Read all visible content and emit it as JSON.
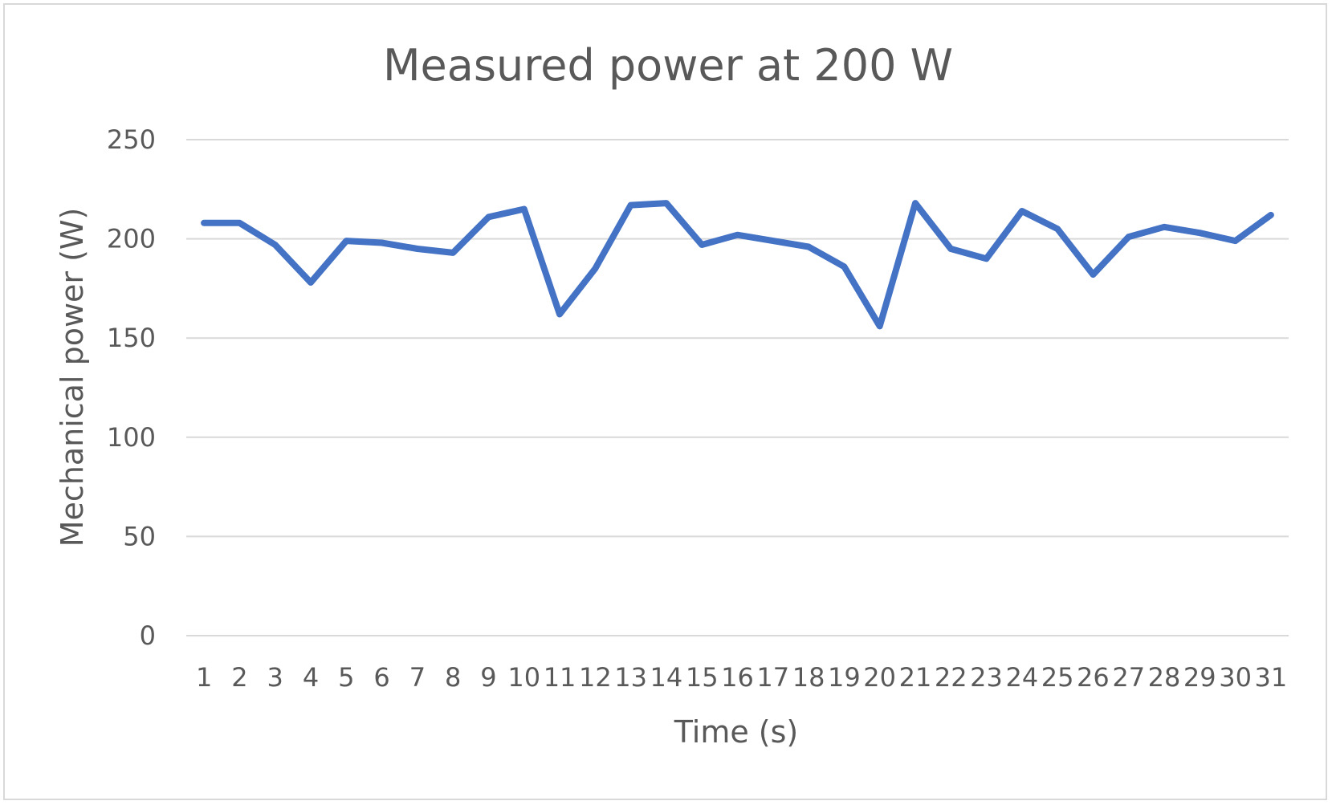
{
  "chart_data": {
    "type": "line",
    "title": "Measured power at 200 W",
    "xlabel": "Time (s)",
    "ylabel": "Mechanical power (W)",
    "ylim": [
      0,
      250
    ],
    "yticks": [
      0,
      50,
      100,
      150,
      200,
      250
    ],
    "grid": true,
    "legend": "none",
    "x": [
      "1",
      "2",
      "3",
      "4",
      "5",
      "6",
      "7",
      "8",
      "9",
      "10",
      "11",
      "12",
      "13",
      "14",
      "15",
      "16",
      "17",
      "18",
      "19",
      "20",
      "21",
      "22",
      "23",
      "24",
      "25",
      "26",
      "27",
      "28",
      "29",
      "30",
      "31"
    ],
    "series": [
      {
        "color": "#4472c4",
        "values": [
          208,
          208,
          197,
          178,
          199,
          198,
          195,
          193,
          211,
          215,
          162,
          185,
          217,
          218,
          197,
          202,
          199,
          196,
          186,
          156,
          218,
          195,
          190,
          214,
          205,
          182,
          201,
          206,
          203,
          199,
          212
        ]
      }
    ]
  }
}
